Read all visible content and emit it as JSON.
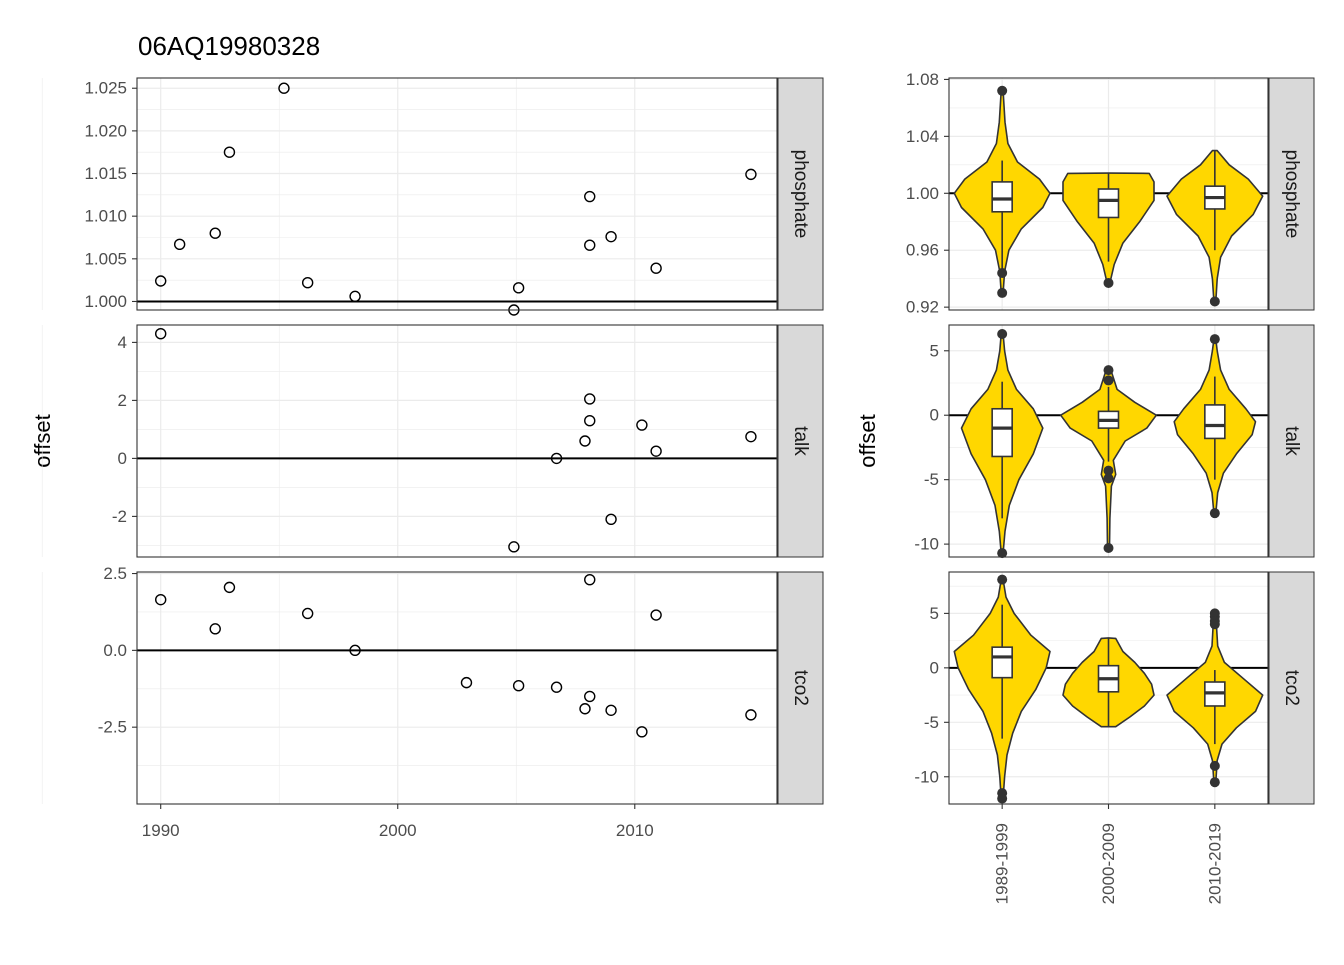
{
  "title": "06AQ19980328",
  "ylabel": "offset",
  "colors": {
    "fill": "#FFD700",
    "outline": "#333333",
    "strip_bg": "#D9D9D9",
    "grid": "#EBEBEB",
    "point_stroke": "#000000"
  },
  "chart_data": [
    {
      "type": "scatter",
      "xlabel": "",
      "ylabel": "offset",
      "x_ticks": [
        1990,
        2000,
        2010
      ],
      "xlim": [
        1989,
        2016
      ],
      "reference_line": "y = 1 (phosphate), y = 0 (talk, tco2)",
      "grid": true,
      "panels": [
        {
          "strip": "phosphate",
          "ylim": [
            0.999,
            1.0262
          ],
          "y_ticks": [
            1.0,
            1.005,
            1.01,
            1.015,
            1.02,
            1.025
          ],
          "y_tick_labels": [
            "1.000",
            "1.005",
            "1.010",
            "1.015",
            "1.020",
            "1.025"
          ],
          "hline": 1.0,
          "x": [
            1990.0,
            1990.8,
            1992.3,
            1992.9,
            1995.2,
            1996.2,
            1998.2,
            2004.9,
            2005.1,
            2008.1,
            2008.1,
            2009.0,
            2010.9,
            2014.9
          ],
          "y": [
            1.0024,
            1.0067,
            1.008,
            1.0175,
            1.025,
            1.0022,
            1.0006,
            0.999,
            1.0016,
            1.0123,
            1.0066,
            1.0076,
            1.0039,
            1.0149
          ]
        },
        {
          "strip": "talk",
          "ylim": [
            -3.4,
            4.6
          ],
          "y_ticks": [
            -2,
            0,
            2,
            4
          ],
          "y_tick_labels": [
            "-2",
            "0",
            "2",
            "4"
          ],
          "hline": 0,
          "x": [
            1990.0,
            2004.9,
            2006.7,
            2007.9,
            2008.1,
            2008.1,
            2009.0,
            2010.3,
            2010.9,
            2014.9
          ],
          "y": [
            4.3,
            -3.05,
            0.0,
            0.6,
            2.05,
            1.3,
            -2.1,
            1.15,
            0.25,
            0.75
          ]
        },
        {
          "strip": "tco2",
          "ylim": [
            -5.0,
            2.55
          ],
          "y_ticks": [
            -2.5,
            0.0,
            2.5
          ],
          "y_tick_labels": [
            "-2.5",
            "0.0",
            "2.5"
          ],
          "hline": 0,
          "x": [
            1990.0,
            1992.3,
            1992.9,
            1996.2,
            1998.2,
            2002.9,
            2005.1,
            2006.7,
            2007.9,
            2008.1,
            2008.1,
            2009.0,
            2010.3,
            2010.9,
            2014.9
          ],
          "y": [
            1.65,
            0.7,
            2.05,
            1.2,
            0.0,
            -1.05,
            -1.15,
            -1.2,
            -1.9,
            -1.5,
            2.3,
            -1.95,
            -2.65,
            1.15,
            -2.1
          ]
        }
      ]
    },
    {
      "type": "violin",
      "xlabel": "",
      "ylabel": "offset",
      "categories": [
        "1989-1999",
        "2000-2009",
        "2010-2019"
      ],
      "grid": true,
      "panels": [
        {
          "strip": "phosphate",
          "ylim": [
            0.918,
            1.081
          ],
          "y_ticks": [
            0.92,
            0.96,
            1.0,
            1.04,
            1.08
          ],
          "y_tick_labels": [
            "0.92",
            "0.96",
            "1.00",
            "1.04",
            "1.08"
          ],
          "hline": 1.0,
          "groups": [
            {
              "min": 0.93,
              "max": 1.072,
              "q1": 0.987,
              "median": 0.996,
              "q3": 1.008,
              "whisker_low": 0.945,
              "whisker_high": 1.023,
              "outliers": [
                1.072,
                0.944,
                0.93
              ],
              "violin": [
                [
                  0.93,
                  0.02
                ],
                [
                  0.945,
                  0.05
                ],
                [
                  0.96,
                  0.14
                ],
                [
                  0.975,
                  0.4
                ],
                [
                  0.99,
                  0.85
                ],
                [
                  1.0,
                  1.0
                ],
                [
                  1.01,
                  0.78
                ],
                [
                  1.022,
                  0.32
                ],
                [
                  1.035,
                  0.12
                ],
                [
                  1.05,
                  0.06
                ],
                [
                  1.072,
                  0.02
                ]
              ]
            },
            {
              "min": 0.937,
              "max": 1.014,
              "q1": 0.983,
              "median": 0.995,
              "q3": 1.003,
              "whisker_low": 0.952,
              "whisker_high": 1.014,
              "outliers": [
                0.937
              ],
              "violin": [
                [
                  0.937,
                  0.03
                ],
                [
                  0.95,
                  0.12
                ],
                [
                  0.965,
                  0.3
                ],
                [
                  0.98,
                  0.65
                ],
                [
                  0.995,
                  0.95
                ],
                [
                  1.008,
                  0.95
                ],
                [
                  1.014,
                  0.85
                ],
                [
                  1.0142,
                  0.0
                ]
              ]
            },
            {
              "min": 0.924,
              "max": 1.03,
              "q1": 0.989,
              "median": 0.997,
              "q3": 1.005,
              "whisker_low": 0.96,
              "whisker_high": 1.03,
              "outliers": [
                0.924
              ],
              "violin": [
                [
                  0.924,
                  0.02
                ],
                [
                  0.94,
                  0.05
                ],
                [
                  0.955,
                  0.12
                ],
                [
                  0.97,
                  0.35
                ],
                [
                  0.985,
                  0.8
                ],
                [
                  0.998,
                  1.0
                ],
                [
                  1.01,
                  0.7
                ],
                [
                  1.02,
                  0.3
                ],
                [
                  1.03,
                  0.05
                ]
              ]
            }
          ]
        },
        {
          "strip": "talk",
          "ylim": [
            -11.0,
            7.0
          ],
          "y_ticks": [
            -10,
            -5,
            0,
            5
          ],
          "y_tick_labels": [
            "-10",
            "-5",
            "0",
            "5"
          ],
          "hline": 0,
          "groups": [
            {
              "min": -10.7,
              "max": 6.3,
              "q1": -3.2,
              "median": -1.0,
              "q3": 0.5,
              "whisker_low": -8.0,
              "whisker_high": 2.6,
              "outliers": [
                6.3,
                -10.7
              ],
              "violin": [
                [
                  -10.7,
                  0.02
                ],
                [
                  -9.0,
                  0.06
                ],
                [
                  -7.0,
                  0.15
                ],
                [
                  -5.0,
                  0.35
                ],
                [
                  -3.0,
                  0.65
                ],
                [
                  -1.0,
                  0.85
                ],
                [
                  0.5,
                  0.65
                ],
                [
                  2.0,
                  0.3
                ],
                [
                  3.5,
                  0.12
                ],
                [
                  5.0,
                  0.05
                ],
                [
                  6.3,
                  0.02
                ]
              ]
            },
            {
              "min": -10.3,
              "max": 3.5,
              "q1": -1.0,
              "median": -0.4,
              "q3": 0.3,
              "whisker_low": -3.6,
              "whisker_high": 2.2,
              "outliers": [
                3.5,
                2.7,
                -4.3,
                -4.9,
                -10.3
              ],
              "violin": [
                [
                  -10.3,
                  0.02
                ],
                [
                  -8.0,
                  0.03
                ],
                [
                  -5.5,
                  0.06
                ],
                [
                  -4.6,
                  0.15
                ],
                [
                  -3.5,
                  0.1
                ],
                [
                  -2.0,
                  0.35
                ],
                [
                  -1.0,
                  0.8
                ],
                [
                  0.0,
                  1.0
                ],
                [
                  1.0,
                  0.55
                ],
                [
                  2.0,
                  0.18
                ],
                [
                  3.5,
                  0.05
                ]
              ]
            },
            {
              "min": -7.6,
              "max": 5.9,
              "q1": -1.8,
              "median": -0.8,
              "q3": 0.8,
              "whisker_low": -5.0,
              "whisker_high": 3.0,
              "outliers": [
                5.9,
                -7.6
              ],
              "violin": [
                [
                  -7.6,
                  0.02
                ],
                [
                  -6.0,
                  0.06
                ],
                [
                  -4.5,
                  0.18
                ],
                [
                  -3.0,
                  0.45
                ],
                [
                  -1.5,
                  0.78
                ],
                [
                  -0.5,
                  0.85
                ],
                [
                  0.5,
                  0.65
                ],
                [
                  2.0,
                  0.3
                ],
                [
                  3.5,
                  0.12
                ],
                [
                  5.0,
                  0.05
                ],
                [
                  5.9,
                  0.02
                ]
              ]
            }
          ]
        },
        {
          "strip": "tco2",
          "ylim": [
            -12.5,
            8.8
          ],
          "y_ticks": [
            -10,
            -5,
            0,
            5
          ],
          "y_tick_labels": [
            "-10",
            "-5",
            "0",
            "5"
          ],
          "hline": 0,
          "groups": [
            {
              "min": -12.0,
              "max": 8.1,
              "q1": -0.9,
              "median": 1.0,
              "q3": 1.9,
              "whisker_low": -6.5,
              "whisker_high": 5.8,
              "outliers": [
                8.1,
                -11.5,
                -12.0
              ],
              "violin": [
                [
                  -12.0,
                  0.02
                ],
                [
                  -10.0,
                  0.05
                ],
                [
                  -8.0,
                  0.1
                ],
                [
                  -6.0,
                  0.22
                ],
                [
                  -4.0,
                  0.4
                ],
                [
                  -2.0,
                  0.7
                ],
                [
                  0.0,
                  0.92
                ],
                [
                  1.5,
                  1.0
                ],
                [
                  3.0,
                  0.6
                ],
                [
                  5.0,
                  0.25
                ],
                [
                  6.5,
                  0.08
                ],
                [
                  8.1,
                  0.02
                ]
              ]
            },
            {
              "min": -5.4,
              "max": 2.7,
              "q1": -2.2,
              "median": -1.0,
              "q3": 0.2,
              "whisker_low": -5.4,
              "whisker_high": 2.7,
              "outliers": [],
              "violin": [
                [
                  -5.4,
                  0.15
                ],
                [
                  -4.5,
                  0.45
                ],
                [
                  -3.5,
                  0.75
                ],
                [
                  -2.5,
                  0.95
                ],
                [
                  -1.5,
                  0.9
                ],
                [
                  -0.5,
                  0.75
                ],
                [
                  0.5,
                  0.55
                ],
                [
                  1.5,
                  0.3
                ],
                [
                  2.7,
                  0.15
                ],
                [
                  2.75,
                  0.0
                ]
              ]
            },
            {
              "min": -10.5,
              "max": 5.0,
              "q1": -3.5,
              "median": -2.3,
              "q3": -1.3,
              "whisker_low": -7.0,
              "whisker_high": -0.2,
              "outliers": [
                5.0,
                4.7,
                4.3,
                4.0,
                -9.0,
                -10.5
              ],
              "violin": [
                [
                  -10.5,
                  0.02
                ],
                [
                  -8.5,
                  0.05
                ],
                [
                  -7.0,
                  0.15
                ],
                [
                  -5.5,
                  0.45
                ],
                [
                  -4.0,
                  0.85
                ],
                [
                  -2.5,
                  1.0
                ],
                [
                  -1.0,
                  0.6
                ],
                [
                  0.5,
                  0.2
                ],
                [
                  2.0,
                  0.06
                ],
                [
                  3.5,
                  0.04
                ],
                [
                  5.0,
                  0.02
                ]
              ]
            }
          ]
        }
      ]
    }
  ]
}
